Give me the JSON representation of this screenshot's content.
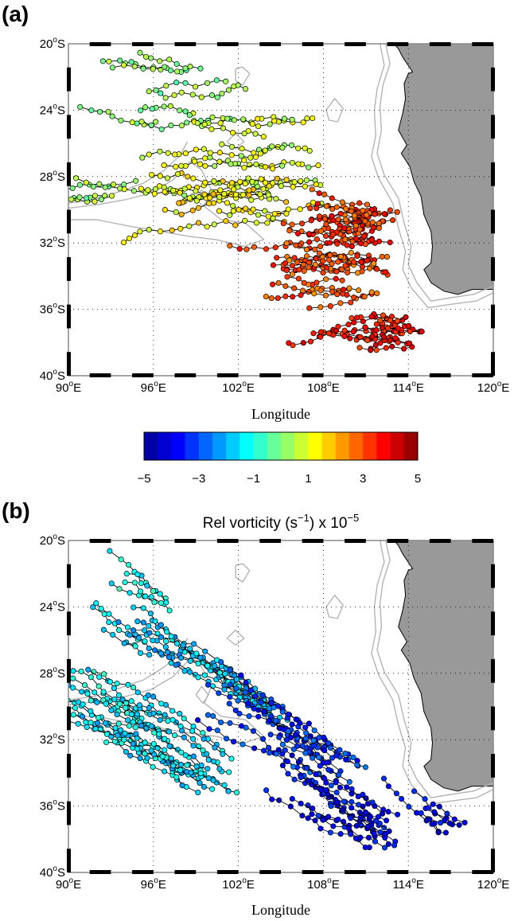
{
  "colors": {
    "land": "#999999",
    "bathymetry": "#b4b4b4",
    "track_line": "#000000",
    "grid": "#000000",
    "colormap_stops": [
      "#00008f",
      "#0000ff",
      "#0080ff",
      "#00ffff",
      "#80ff80",
      "#ffff00",
      "#ff8000",
      "#ff0000",
      "#800000"
    ]
  },
  "panels": [
    {
      "label": "(a)",
      "title": "",
      "xlabel": "Longitude",
      "colorbar": {
        "ticks": [
          "−5",
          "−3",
          "−1",
          "1",
          "3",
          "5"
        ],
        "range": [
          -5,
          5
        ],
        "bins": 20
      }
    },
    {
      "label": "(b)",
      "title_main": "Rel vorticity (s",
      "title_exp1": "−1",
      "title_mid": ") x 10",
      "title_exp2": "−5",
      "xlabel": "Longitude"
    }
  ],
  "map": {
    "lon_range": [
      90,
      120
    ],
    "lat_range": [
      -40,
      -20
    ],
    "xticks": [
      {
        "lon": 90,
        "num": "90",
        "hemi": "E"
      },
      {
        "lon": 96,
        "num": "96",
        "hemi": "E"
      },
      {
        "lon": 102,
        "num": "102",
        "hemi": "E"
      },
      {
        "lon": 108,
        "num": "108",
        "hemi": "E"
      },
      {
        "lon": 114,
        "num": "114",
        "hemi": "E"
      },
      {
        "lon": 120,
        "num": "120",
        "hemi": "E"
      }
    ],
    "yticks": [
      {
        "lat": -20,
        "num": "20",
        "hemi": "S"
      },
      {
        "lat": -24,
        "num": "24",
        "hemi": "S"
      },
      {
        "lat": -28,
        "num": "28",
        "hemi": "S"
      },
      {
        "lat": -32,
        "num": "32",
        "hemi": "S"
      },
      {
        "lat": -36,
        "num": "36",
        "hemi": "S"
      },
      {
        "lat": -40,
        "num": "40",
        "hemi": "S"
      }
    ],
    "deg_symbol": "o",
    "coast": [
      [
        113.0,
        -20
      ],
      [
        120,
        -20
      ],
      [
        120,
        -34.8
      ],
      [
        118.5,
        -34.8
      ],
      [
        117.5,
        -35.1
      ],
      [
        116.5,
        -34.9
      ],
      [
        115.6,
        -34.4
      ],
      [
        115.1,
        -33.6
      ],
      [
        115.6,
        -33.2
      ],
      [
        115.7,
        -32.2
      ],
      [
        115.6,
        -31.3
      ],
      [
        115.1,
        -30.3
      ],
      [
        114.9,
        -29.2
      ],
      [
        114.4,
        -28.3
      ],
      [
        114.1,
        -27.4
      ],
      [
        113.5,
        -26.6
      ],
      [
        113.9,
        -26.1
      ],
      [
        113.3,
        -25.2
      ],
      [
        113.6,
        -24.2
      ],
      [
        113.8,
        -23.3
      ],
      [
        113.7,
        -22.4
      ],
      [
        114.0,
        -21.8
      ],
      [
        114.3,
        -21.7
      ],
      [
        113.6,
        -20.8
      ],
      [
        113.3,
        -20.3
      ]
    ],
    "bathymetry_contours": [
      [
        [
          112.4,
          -20
        ],
        [
          112.7,
          -21.2
        ],
        [
          112.2,
          -22.5
        ],
        [
          112.0,
          -23.8
        ],
        [
          112.1,
          -25.2
        ],
        [
          111.8,
          -26.6
        ],
        [
          112.3,
          -27.9
        ],
        [
          113.3,
          -29.3
        ],
        [
          113.7,
          -30.8
        ],
        [
          114.2,
          -32.2
        ],
        [
          114.0,
          -33.3
        ],
        [
          114.6,
          -34.4
        ],
        [
          115.6,
          -35.5
        ],
        [
          117.0,
          -35.3
        ],
        [
          118.6,
          -35.1
        ],
        [
          120,
          -34.6
        ]
      ],
      [
        [
          112.0,
          -20
        ],
        [
          112.3,
          -21.3
        ],
        [
          111.8,
          -22.7
        ],
        [
          111.6,
          -24.0
        ],
        [
          111.7,
          -25.5
        ],
        [
          111.4,
          -26.8
        ],
        [
          111.9,
          -28.1
        ],
        [
          112.9,
          -29.6
        ],
        [
          113.3,
          -31.1
        ],
        [
          113.8,
          -32.5
        ],
        [
          113.6,
          -33.6
        ],
        [
          114.2,
          -34.7
        ],
        [
          115.4,
          -35.9
        ],
        [
          117.0,
          -35.7
        ],
        [
          118.8,
          -35.5
        ],
        [
          120,
          -35.0
        ]
      ],
      [
        [
          90,
          -29.9
        ],
        [
          92.0,
          -29.7
        ],
        [
          94.0,
          -29.4
        ],
        [
          95.8,
          -29.0
        ],
        [
          97.4,
          -28.2
        ],
        [
          98.6,
          -27.1
        ],
        [
          99.4,
          -27.6
        ],
        [
          100.1,
          -28.8
        ],
        [
          99.6,
          -29.8
        ],
        [
          100.8,
          -30.6
        ],
        [
          102.5,
          -30.8
        ],
        [
          103.8,
          -31.8
        ],
        [
          102.4,
          -32.2
        ],
        [
          100.4,
          -31.8
        ],
        [
          98.5,
          -31.6
        ],
        [
          96.5,
          -31.3
        ],
        [
          94.4,
          -31.0
        ],
        [
          92.0,
          -30.6
        ],
        [
          90,
          -30.6
        ]
      ],
      [
        [
          90,
          -29.6
        ],
        [
          91.8,
          -29.4
        ],
        [
          93.6,
          -28.9
        ],
        [
          95.3,
          -28.4
        ],
        [
          96.8,
          -27.6
        ],
        [
          97.9,
          -26.7
        ],
        [
          98.4,
          -25.9
        ]
      ],
      [
        [
          99.0,
          -29.3
        ],
        [
          99.4,
          -28.8
        ],
        [
          99.9,
          -29.3
        ],
        [
          99.5,
          -29.8
        ],
        [
          99.0,
          -29.3
        ]
      ],
      [
        [
          101.8,
          -21.5
        ],
        [
          102.3,
          -21.4
        ],
        [
          102.8,
          -21.8
        ],
        [
          102.3,
          -22.5
        ],
        [
          101.8,
          -22.2
        ],
        [
          101.8,
          -21.5
        ]
      ],
      [
        [
          108.2,
          -24.0
        ],
        [
          108.8,
          -23.3
        ],
        [
          109.4,
          -23.9
        ],
        [
          109.0,
          -24.7
        ],
        [
          108.4,
          -24.6
        ],
        [
          108.2,
          -24.0
        ]
      ],
      [
        [
          101.2,
          -25.9
        ],
        [
          101.8,
          -25.4
        ],
        [
          102.4,
          -25.9
        ],
        [
          101.8,
          -26.3
        ],
        [
          101.2,
          -25.9
        ]
      ]
    ]
  }
}
